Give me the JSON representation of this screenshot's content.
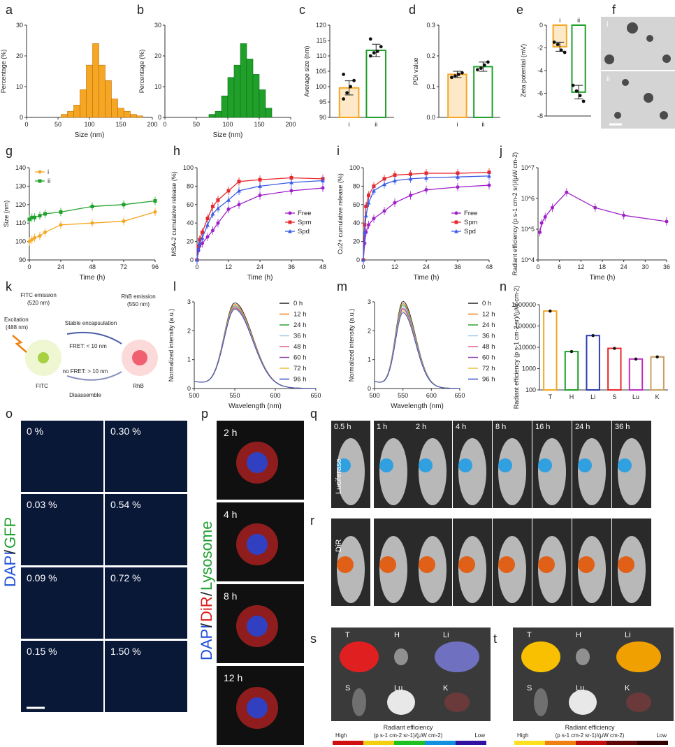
{
  "panel_labels": {
    "a": "a",
    "b": "b",
    "c": "c",
    "d": "d",
    "e": "e",
    "f": "f",
    "g": "g",
    "h": "h",
    "i": "i",
    "j": "j",
    "k": "k",
    "l": "l",
    "m": "m",
    "n": "n",
    "o": "o",
    "p": "p",
    "q": "q",
    "r": "r",
    "s": "s",
    "t": "t"
  },
  "colors": {
    "orange": "#f5a623",
    "green": "#20a02a",
    "red": "#e8282c",
    "blue": "#3c5ce6",
    "purple": "#a020c8",
    "darkred": "#8b1010",
    "navy": "#2c3cb0",
    "magenta": "#c030c0",
    "tan": "#c8a060"
  },
  "chart_data": [
    {
      "id": "a",
      "type": "bar",
      "title": "",
      "xlabel": "Size (nm)",
      "ylabel": "Percentage (%)",
      "xlim": [
        0,
        200
      ],
      "ylim": [
        0,
        30
      ],
      "xticks": [
        "0",
        "50",
        "100",
        "150",
        "200"
      ],
      "yticks": [
        "0",
        "10",
        "20",
        "30"
      ],
      "x": [
        60,
        70,
        80,
        90,
        100,
        110,
        120,
        130,
        140,
        150,
        160,
        170,
        180
      ],
      "values": [
        1,
        2,
        4,
        9,
        17,
        24,
        17,
        12,
        6,
        3,
        2,
        1,
        0.5
      ]
    },
    {
      "id": "b",
      "type": "bar",
      "title": "",
      "xlabel": "Size (nm)",
      "ylabel": "Percentage (%)",
      "xlim": [
        0,
        200
      ],
      "ylim": [
        0,
        30
      ],
      "xticks": [
        "0",
        "50",
        "100",
        "150",
        "200"
      ],
      "yticks": [
        "0",
        "10",
        "20",
        "30"
      ],
      "x": [
        75,
        85,
        95,
        105,
        115,
        125,
        135,
        145,
        155,
        165
      ],
      "values": [
        1,
        2,
        7,
        13,
        17,
        24,
        19,
        14,
        9,
        3
      ]
    },
    {
      "id": "c",
      "type": "bar",
      "title": "",
      "xlabel": "",
      "ylabel": "Average size (nm)",
      "ylim": [
        90,
        120
      ],
      "categories": [
        "i",
        "ii"
      ],
      "values": [
        99.6,
        111.8
      ],
      "err": [
        2.3,
        2.0
      ],
      "yticks": [
        "90",
        "95",
        "100",
        "105",
        "110",
        "115",
        "120"
      ],
      "points": [
        [
          96,
          98,
          100,
          102,
          104
        ],
        [
          110,
          111,
          111.5,
          113,
          115.5
        ]
      ]
    },
    {
      "id": "d",
      "type": "bar",
      "title": "",
      "xlabel": "",
      "ylabel": "PDI value",
      "ylim": [
        0,
        0.3
      ],
      "categories": [
        "i",
        "ii"
      ],
      "values": [
        0.14,
        0.165
      ],
      "err": [
        0.01,
        0.015
      ],
      "yticks": [
        "0.0",
        "0.1",
        "0.2",
        "0.3"
      ],
      "points": [
        [
          0.13,
          0.135,
          0.14,
          0.145
        ],
        [
          0.155,
          0.16,
          0.17,
          0.18
        ]
      ]
    },
    {
      "id": "e",
      "type": "bar",
      "title": "",
      "xlabel": "",
      "ylabel": "Zeta potential (mV)",
      "ylim": [
        -8,
        0
      ],
      "categories": [
        "i",
        "ii"
      ],
      "values": [
        -1.9,
        -5.9
      ],
      "err": [
        0.4,
        0.6
      ],
      "yticks": [
        "-8",
        "-6",
        "-4",
        "-2",
        "0"
      ],
      "points": [
        [
          -1.5,
          -1.7,
          -2.2,
          -2.4
        ],
        [
          -5.3,
          -5.8,
          -6.2,
          -6.7
        ]
      ]
    },
    {
      "id": "g",
      "type": "line",
      "title": "",
      "xlabel": "Time (h)",
      "ylabel": "Size (nm)",
      "xlim": [
        0,
        96
      ],
      "ylim": [
        90,
        140
      ],
      "xticks": [
        "0",
        "24",
        "48",
        "72",
        "96"
      ],
      "yticks": [
        "90",
        "100",
        "110",
        "120",
        "130",
        "140"
      ],
      "x": [
        0,
        2,
        4,
        8,
        12,
        24,
        48,
        72,
        96
      ],
      "series": [
        {
          "name": "i",
          "values": [
            100,
            101,
            102,
            103,
            105,
            109,
            110,
            111,
            116
          ]
        },
        {
          "name": "ii",
          "values": [
            112,
            113,
            113,
            114,
            115,
            116,
            119,
            120,
            122
          ]
        }
      ]
    },
    {
      "id": "h",
      "type": "line",
      "title": "",
      "xlabel": "Time (h)",
      "ylabel": "MSA-2 cumulative release (%)",
      "xlim": [
        0,
        48
      ],
      "ylim": [
        0,
        100
      ],
      "xticks": [
        "0",
        "12",
        "24",
        "36",
        "48"
      ],
      "yticks": [
        "0",
        "20",
        "40",
        "60",
        "80",
        "100"
      ],
      "x": [
        0,
        0.5,
        1,
        2,
        4,
        6,
        8,
        12,
        16,
        24,
        36,
        48
      ],
      "series": [
        {
          "name": "Free",
          "values": [
            0,
            10,
            15,
            18,
            25,
            32,
            40,
            55,
            60,
            70,
            75,
            78
          ]
        },
        {
          "name": "Spm",
          "values": [
            0,
            15,
            22,
            30,
            45,
            58,
            65,
            75,
            85,
            87,
            89,
            88
          ]
        },
        {
          "name": "Spd",
          "values": [
            0,
            12,
            18,
            24,
            38,
            50,
            56,
            65,
            75,
            80,
            84,
            86
          ]
        }
      ]
    },
    {
      "id": "i",
      "type": "line",
      "title": "",
      "xlabel": "Time (h)",
      "ylabel": "Cu2+ cumulative release (%)",
      "xlim": [
        0,
        48
      ],
      "ylim": [
        0,
        100
      ],
      "xticks": [
        "0",
        "12",
        "24",
        "36",
        "48"
      ],
      "yticks": [
        "0",
        "20",
        "40",
        "60",
        "80",
        "100"
      ],
      "x": [
        0,
        0.5,
        1,
        2,
        4,
        8,
        12,
        18,
        24,
        36,
        48
      ],
      "series": [
        {
          "name": "Free",
          "values": [
            0,
            18,
            30,
            38,
            45,
            53,
            62,
            70,
            76,
            79,
            81
          ]
        },
        {
          "name": "Spm",
          "values": [
            0,
            38,
            58,
            70,
            80,
            88,
            92,
            93,
            94,
            94,
            95
          ]
        },
        {
          "name": "Spd",
          "values": [
            0,
            30,
            48,
            62,
            75,
            82,
            86,
            88,
            89,
            90,
            91
          ]
        }
      ]
    },
    {
      "id": "j",
      "type": "line",
      "title": "",
      "xlabel": "Time (h)",
      "ylabel": "Radiant efficiency (p s-1 cm-2 sr)/(μW cm-2)",
      "xlim": [
        0,
        36
      ],
      "ylim": [
        4,
        7
      ],
      "yscale": "log",
      "xticks": [
        "0",
        "6",
        "12",
        "18",
        "24",
        "30",
        "36"
      ],
      "yticks": [
        "10^4",
        "10^5",
        "10^6",
        "10^7"
      ],
      "x": [
        0.5,
        1,
        2,
        4,
        8,
        16,
        24,
        36
      ],
      "series": [
        {
          "name": "Radiant efficiency",
          "log_values": [
            4.9,
            5.2,
            5.4,
            5.7,
            6.2,
            5.7,
            5.45,
            5.25
          ]
        }
      ]
    },
    {
      "id": "l",
      "type": "line",
      "title": "",
      "xlabel": "Wavelength (nm)",
      "ylabel": "Normalized intensity (a.u.)",
      "xlim": [
        500,
        650
      ],
      "ylim": [
        0,
        3
      ],
      "xticks": [
        "500",
        "550",
        "600",
        "650"
      ],
      "yticks": [
        "0",
        "1",
        "2",
        "3"
      ],
      "series": [
        {
          "name": "0 h",
          "peak": 2.9
        },
        {
          "name": "12 h",
          "peak": 2.85
        },
        {
          "name": "24 h",
          "peak": 2.8
        },
        {
          "name": "36 h",
          "peak": 2.78
        },
        {
          "name": "48 h",
          "peak": 2.75
        },
        {
          "name": "60 h",
          "peak": 2.72
        },
        {
          "name": "72 h",
          "peak": 2.7
        },
        {
          "name": "96 h",
          "peak": 2.68
        }
      ]
    },
    {
      "id": "m",
      "type": "line",
      "title": "",
      "xlabel": "Wavelength (nm)",
      "ylabel": "Normalized intensity (a.u.)",
      "xlim": [
        500,
        650
      ],
      "ylim": [
        0,
        3
      ],
      "xticks": [
        "500",
        "550",
        "600",
        "650"
      ],
      "yticks": [
        "0",
        "1",
        "2",
        "3"
      ],
      "series": [
        {
          "name": "0 h",
          "peak": 2.95
        },
        {
          "name": "12 h",
          "peak": 2.88
        },
        {
          "name": "24 h",
          "peak": 2.83
        },
        {
          "name": "36 h",
          "peak": 2.78
        },
        {
          "name": "48 h",
          "peak": 2.72
        },
        {
          "name": "60 h",
          "peak": 2.68
        },
        {
          "name": "72 h",
          "peak": 2.62
        },
        {
          "name": "96 h",
          "peak": 2.56
        }
      ]
    },
    {
      "id": "n",
      "type": "bar",
      "title": "",
      "xlabel": "",
      "ylabel": "Radiant efficiency (p s-1 cm-2 sr)/(μW cm-2)",
      "ylim": [
        2,
        6
      ],
      "yscale": "log",
      "categories": [
        "T",
        "H",
        "Li",
        "S",
        "Lu",
        "K"
      ],
      "log_values": [
        5.7,
        3.8,
        4.55,
        3.95,
        3.45,
        3.55
      ],
      "yticks": [
        "100",
        "1000",
        "10000",
        "100000",
        "1000000"
      ]
    }
  ],
  "legend_gi": [
    "i",
    "ii"
  ],
  "legend_hi": [
    "Free",
    "Spm",
    "Spd"
  ],
  "legend_times": [
    "0 h",
    "12 h",
    "24 h",
    "36 h",
    "48 h",
    "60 h",
    "72 h",
    "96 h"
  ],
  "k_text": {
    "fitc_emission": "FITC emission",
    "fitc_nm": "(520 nm)",
    "rhb_emission": "RhB emission",
    "rhb_nm": "(550 nm)",
    "excitation": "Excitation",
    "excitation_nm": "(488 nm)",
    "stable": "Stable encapsulation",
    "fret_close": "FRET: < 10 nm",
    "fret_far": "no FRET: > 10 nm",
    "fitc": "FITC",
    "rhb": "RhB",
    "disassemble": "Disassemble"
  },
  "f_labels": [
    "i",
    "ii"
  ],
  "o_labels": [
    "0 %",
    "0.30 %",
    "0.03 %",
    "0.54 %",
    "0.09 %",
    "0.72 %",
    "0.15 %",
    "1.50 %"
  ],
  "o_side": {
    "dapi": "DAPI",
    "slash": "/",
    "gfp": "GFP"
  },
  "p_labels": [
    "2 h",
    "4 h",
    "8 h",
    "12 h"
  ],
  "p_side": {
    "dapi": "DAPI",
    "slash1": "/",
    "dir": "DiR",
    "slash2": "/",
    "lyso": "Lysosome"
  },
  "q_times": [
    "0.5 h",
    "1 h",
    "2 h",
    "4 h",
    "8 h",
    "16 h",
    "24 h",
    "36 h"
  ],
  "q_side": "Luciferase",
  "r_side": "DiR",
  "organ_labels": [
    "T",
    "H",
    "Li",
    "S",
    "Lu",
    "K"
  ],
  "scale_text": {
    "title": "Radiant efficiency",
    "units": "(p s-1 cm-2 sr-1)/(μW cm-2)",
    "high": "High",
    "low": "Low"
  }
}
